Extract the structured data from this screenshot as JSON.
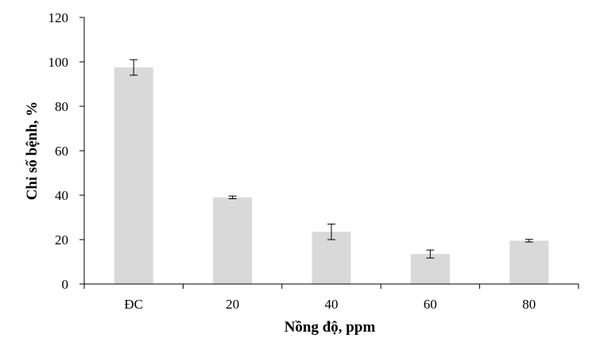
{
  "chart_data": {
    "type": "bar",
    "categories": [
      "ĐC",
      "20",
      "40",
      "60",
      "80"
    ],
    "values": [
      97.5,
      39,
      23.5,
      13.5,
      19.5
    ],
    "error": [
      3.5,
      0.6,
      3.5,
      1.8,
      0.6
    ],
    "xlabel": "Nồng độ, ppm",
    "ylabel": "Chỉ số bệnh, %",
    "ylim": [
      0,
      120
    ],
    "yticks": [
      "0",
      "20",
      "40",
      "60",
      "80",
      "100",
      "120"
    ],
    "grid": false,
    "legend": "none",
    "colors": {
      "bar": "#d9d9d9",
      "axis": "#000000",
      "error_bar": "#000000"
    }
  }
}
